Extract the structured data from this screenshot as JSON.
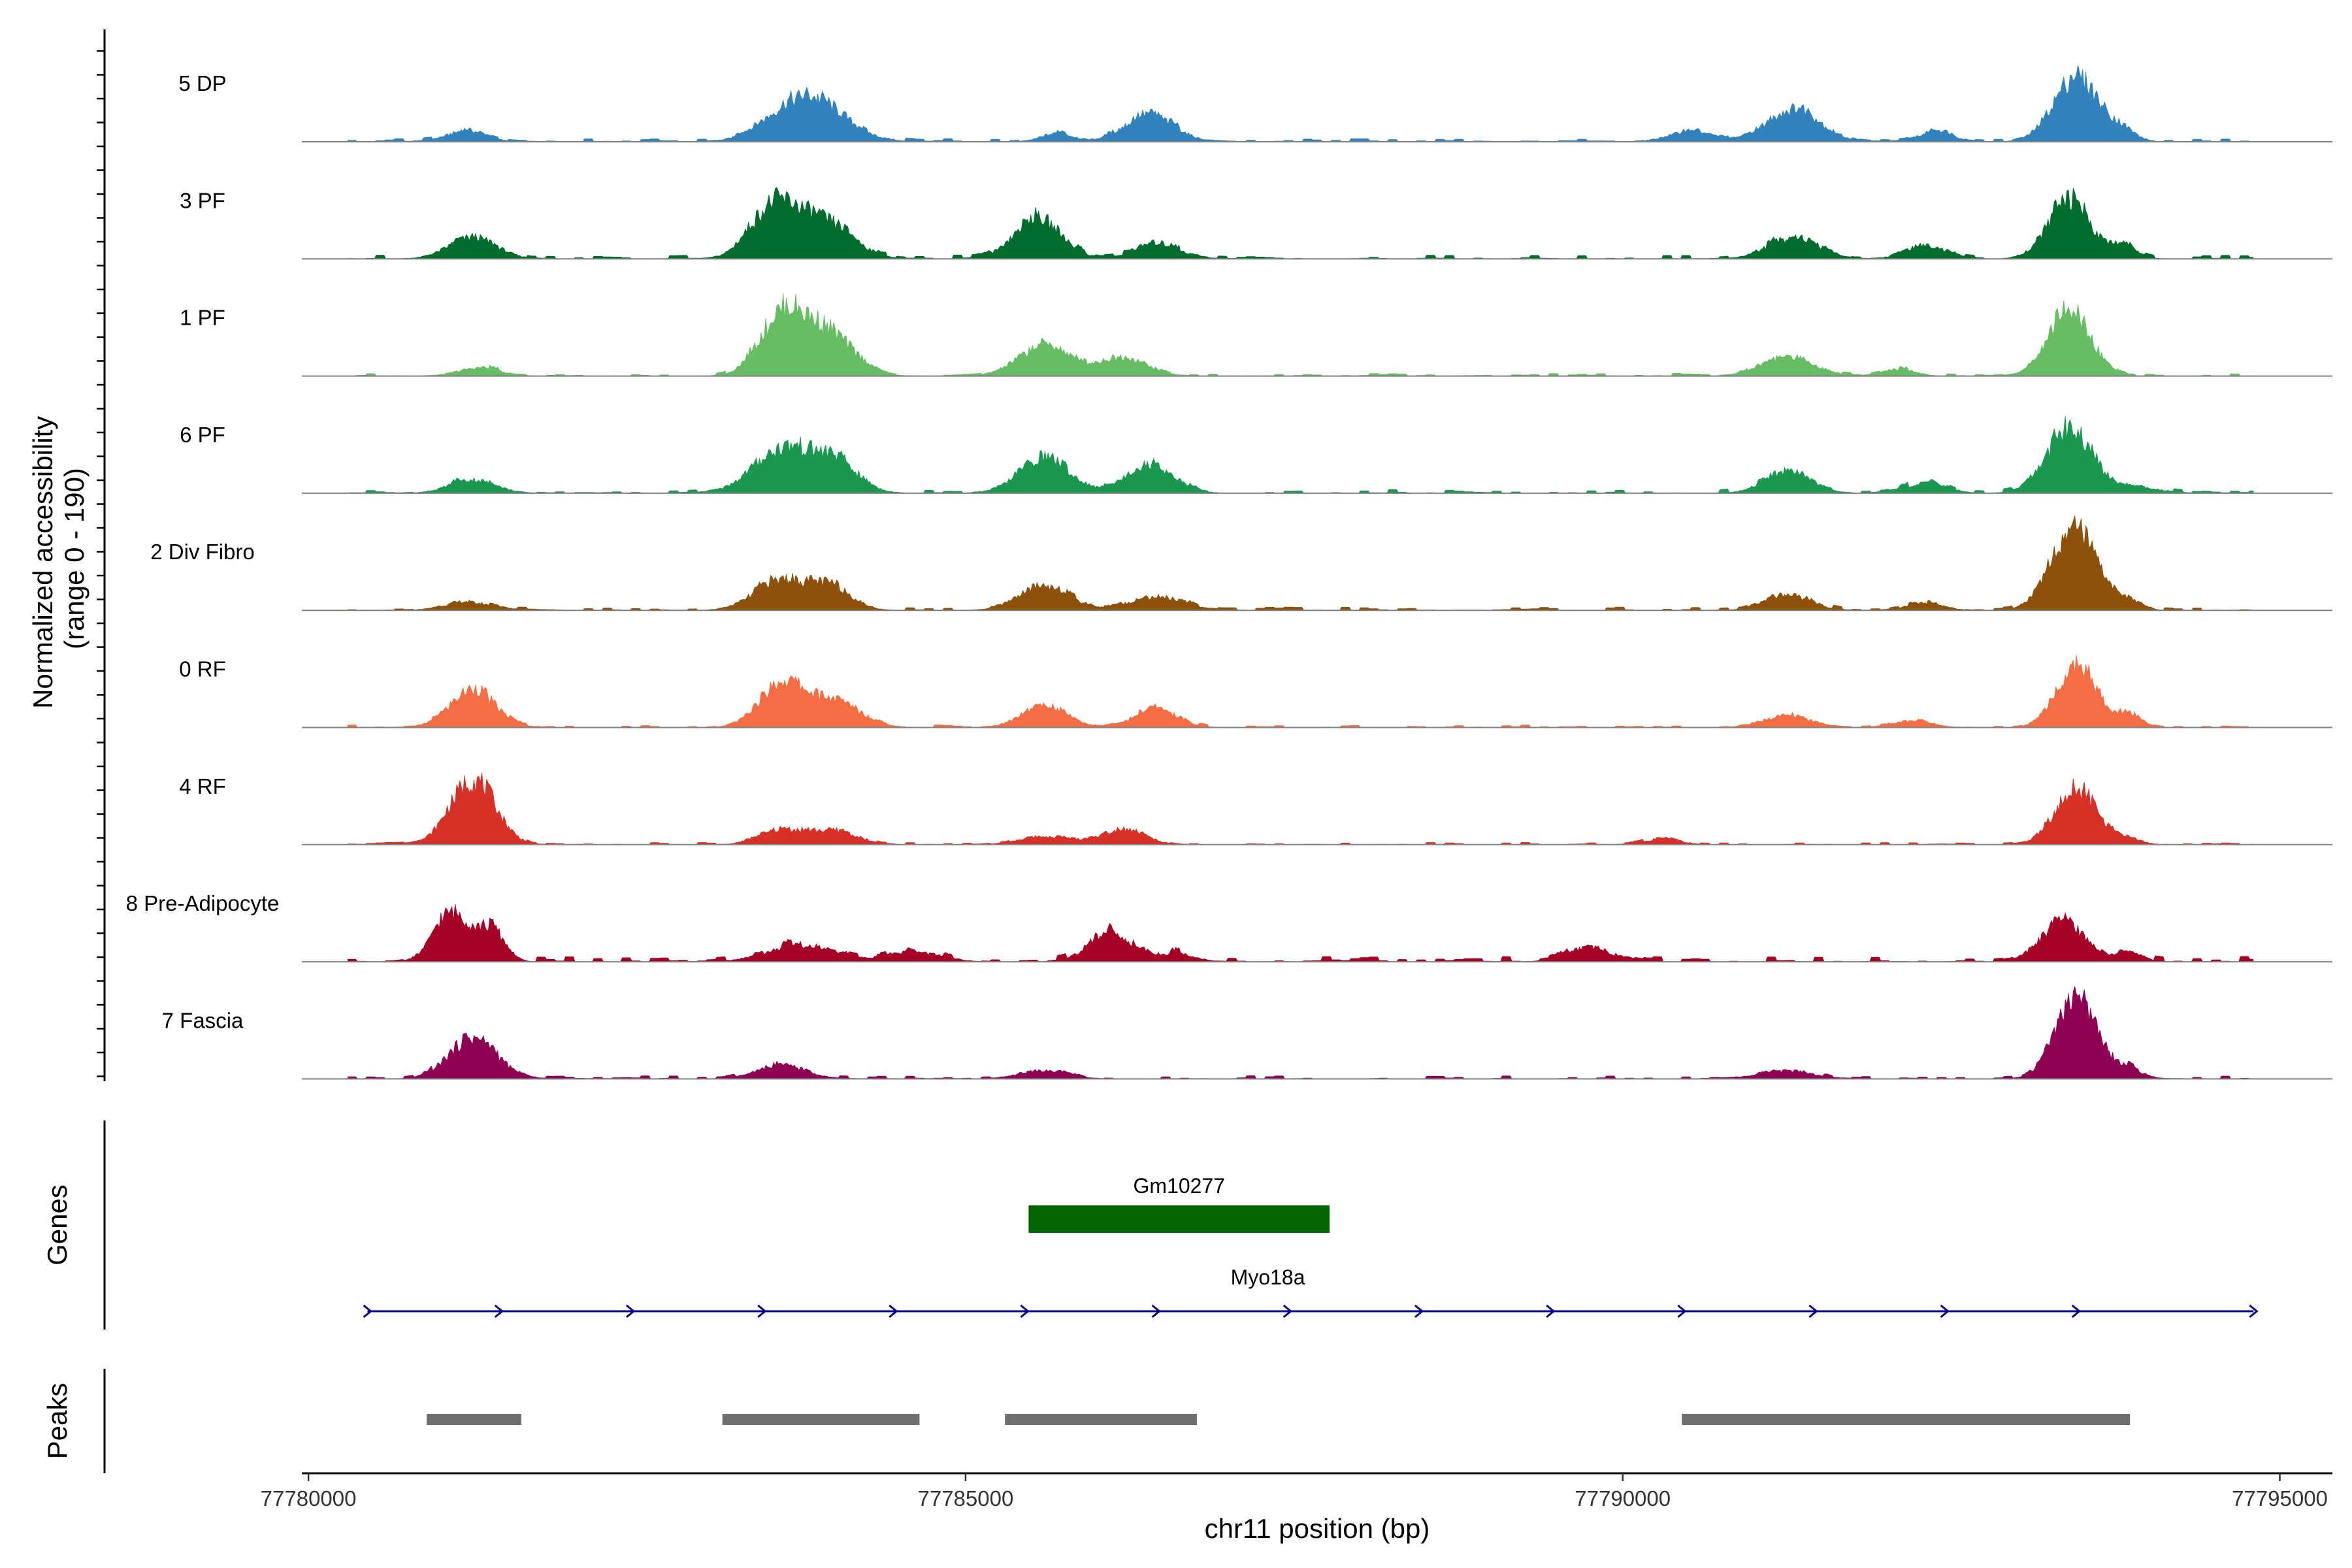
{
  "chart_data": {
    "type": "area",
    "title": "",
    "ylabel_lines": [
      "Normalized accessibility",
      "(range 0 - 190)"
    ],
    "ylim": [
      0,
      190
    ],
    "xlabel": "chr11 position (bp)",
    "xlim": [
      77779950,
      77795400
    ],
    "xticks": [
      77780000,
      77785000,
      77790000,
      77795000
    ],
    "xtick_labels": [
      "77780000",
      "77785000",
      "77790000",
      "77795000"
    ],
    "series": [
      {
        "name": "5 DP",
        "color": "#3182BD",
        "peaks": [
          [
            77781200,
            20,
            140
          ],
          [
            77783800,
            85,
            260
          ],
          [
            77785700,
            15,
            120
          ],
          [
            77786400,
            48,
            190
          ],
          [
            77790500,
            18,
            160
          ],
          [
            77791300,
            60,
            200
          ],
          [
            77792400,
            22,
            110
          ],
          [
            77793450,
            120,
            170
          ],
          [
            77793800,
            20,
            100
          ]
        ],
        "noise": 6
      },
      {
        "name": "3 PF",
        "color": "#006D2C",
        "peaks": [
          [
            77781250,
            40,
            180
          ],
          [
            77783550,
            100,
            180
          ],
          [
            77783950,
            65,
            200
          ],
          [
            77785550,
            75,
            180
          ],
          [
            77786450,
            30,
            160
          ],
          [
            77791300,
            40,
            190
          ],
          [
            77792300,
            25,
            150
          ],
          [
            77793400,
            110,
            160
          ],
          [
            77793820,
            28,
            90
          ]
        ],
        "noise": 7
      },
      {
        "name": "1 PF",
        "color": "#66BD63",
        "peaks": [
          [
            77781300,
            15,
            160
          ],
          [
            77783600,
            110,
            170
          ],
          [
            77783950,
            80,
            190
          ],
          [
            77785600,
            55,
            200
          ],
          [
            77786200,
            35,
            180
          ],
          [
            77791250,
            35,
            200
          ],
          [
            77792100,
            12,
            120
          ],
          [
            77793400,
            120,
            160
          ]
        ],
        "noise": 5
      },
      {
        "name": "6 PF",
        "color": "#1A9850",
        "peaks": [
          [
            77781250,
            25,
            170
          ],
          [
            77783600,
            80,
            220
          ],
          [
            77784000,
            55,
            180
          ],
          [
            77785600,
            65,
            190
          ],
          [
            77786400,
            52,
            180
          ],
          [
            77791250,
            40,
            170
          ],
          [
            77792300,
            18,
            160
          ],
          [
            77793400,
            120,
            170
          ],
          [
            77793900,
            10,
            200
          ]
        ],
        "noise": 7
      },
      {
        "name": "2 Div Fibro",
        "color": "#8C510A",
        "peaks": [
          [
            77781200,
            15,
            170
          ],
          [
            77783600,
            55,
            200
          ],
          [
            77783980,
            40,
            160
          ],
          [
            77785600,
            45,
            190
          ],
          [
            77786450,
            25,
            200
          ],
          [
            77791250,
            28,
            170
          ],
          [
            77792300,
            12,
            140
          ],
          [
            77793430,
            155,
            170
          ],
          [
            77793850,
            15,
            100
          ]
        ],
        "noise": 6
      },
      {
        "name": "0 RF",
        "color": "#F46D43",
        "peaks": [
          [
            77781250,
            70,
            170
          ],
          [
            77783600,
            80,
            170
          ],
          [
            77784000,
            48,
            200
          ],
          [
            77785600,
            40,
            170
          ],
          [
            77786450,
            35,
            160
          ],
          [
            77791250,
            22,
            180
          ],
          [
            77792200,
            12,
            150
          ],
          [
            77793450,
            120,
            150
          ],
          [
            77793850,
            25,
            100
          ]
        ],
        "noise": 5
      },
      {
        "name": "4 RF",
        "color": "#D73027",
        "peaks": [
          [
            77781250,
            120,
            170
          ],
          [
            77783600,
            28,
            160
          ],
          [
            77784000,
            25,
            170
          ],
          [
            77785600,
            15,
            180
          ],
          [
            77786200,
            30,
            160
          ],
          [
            77790300,
            10,
            140
          ],
          [
            77793450,
            105,
            160
          ],
          [
            77793850,
            10,
            100
          ]
        ],
        "noise": 4
      },
      {
        "name": "8 Pre-Adipocyte",
        "color": "#A50026",
        "peaks": [
          [
            77781100,
            90,
            140
          ],
          [
            77781400,
            55,
            100
          ],
          [
            77783750,
            30,
            250
          ],
          [
            77784600,
            18,
            200
          ],
          [
            77786100,
            55,
            160
          ],
          [
            77786600,
            15,
            140
          ],
          [
            77789750,
            25,
            170
          ],
          [
            77793350,
            70,
            170
          ],
          [
            77793850,
            18,
            100
          ]
        ],
        "noise": 10
      },
      {
        "name": "7 Fascia",
        "color": "#8E0152",
        "peaks": [
          [
            77781250,
            75,
            180
          ],
          [
            77783600,
            25,
            180
          ],
          [
            77785600,
            15,
            180
          ],
          [
            77791250,
            15,
            180
          ],
          [
            77793450,
            145,
            160
          ],
          [
            77793850,
            18,
            100
          ]
        ],
        "noise": 6
      }
    ],
    "genes": [
      {
        "name": "Gm10277",
        "start": 77785480,
        "end": 77787770,
        "color": "#006400",
        "type": "block"
      },
      {
        "name": "Myo18a",
        "start": 77780450,
        "end": 77794800,
        "color": "#00008B",
        "type": "strand",
        "strand": "+"
      }
    ],
    "peaks": [
      {
        "start": 77780900,
        "end": 77781620
      },
      {
        "start": 77783150,
        "end": 77784650
      },
      {
        "start": 77785300,
        "end": 77786760
      },
      {
        "start": 77790450,
        "end": 77793860
      }
    ],
    "peak_color": "#6E6E6E",
    "panel_titles": [
      "Genes",
      "Peaks"
    ]
  }
}
